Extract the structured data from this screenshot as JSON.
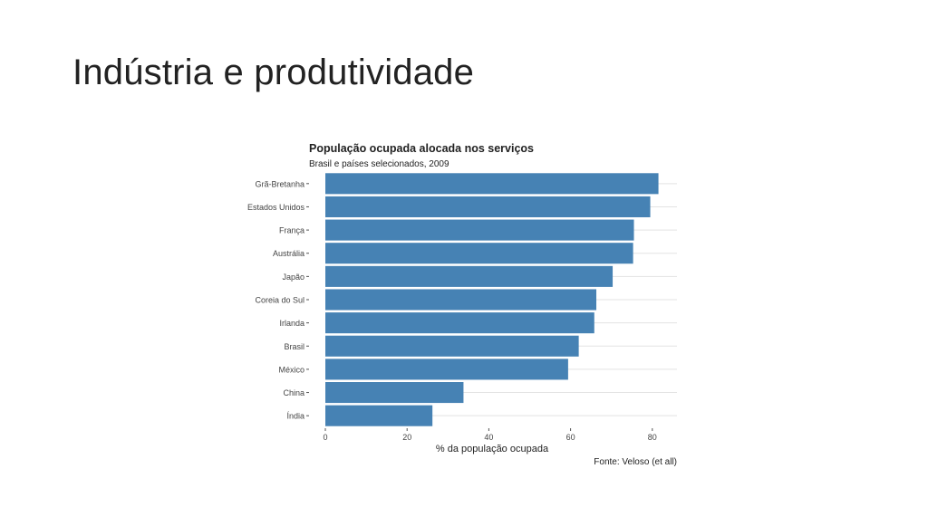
{
  "slide": {
    "title": "Indústria e produtividade"
  },
  "chart_data": {
    "type": "bar",
    "orientation": "horizontal",
    "title": "População ocupada alocada nos serviços",
    "subtitle": "Brasil e países selecionados, 2009",
    "xlabel": "% da população ocupada",
    "ylabel": "",
    "source": "Fonte: Veloso (et all)",
    "xlim": [
      0,
      85
    ],
    "xticks": [
      0,
      20,
      40,
      60,
      80
    ],
    "categories": [
      "Grã-Bretanha",
      "Estados Unidos",
      "França",
      "Austrália",
      "Japão",
      "Coreia do Sul",
      "Irlanda",
      "Brasil",
      "México",
      "China",
      "Índia"
    ],
    "values": [
      81.5,
      79.5,
      75.5,
      75.3,
      70.3,
      66.3,
      65.8,
      62.0,
      59.4,
      33.8,
      26.2
    ],
    "bar_color": "#4682b4",
    "grid": true
  }
}
